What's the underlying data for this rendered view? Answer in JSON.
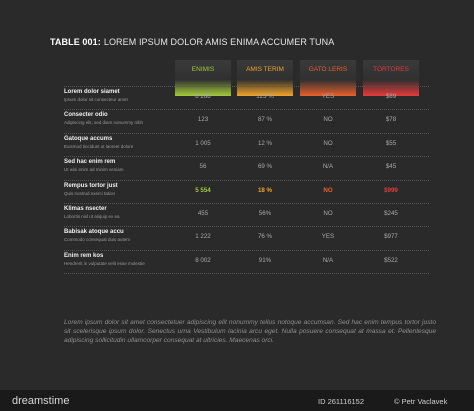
{
  "header": {
    "prefix": "TABLE 001:",
    "title": "LOREM IPSUM DOLOR AMIS ENIMA ACCUMER TUNA"
  },
  "table": {
    "columns": [
      {
        "label": "ENIMIS",
        "color": "#a3c93a"
      },
      {
        "label": "AMIS TERIM",
        "color": "#f0a32a"
      },
      {
        "label": "GATO LERIS",
        "color": "#e8602c"
      },
      {
        "label": "TORTORES",
        "color": "#e23b3b"
      }
    ],
    "rows": [
      {
        "label": "Lorem dolor siamet",
        "sublabel": "Ipsum dolor sit consecteur amet",
        "cells": [
          "8 288",
          "123 %",
          "YES",
          "$89"
        ]
      },
      {
        "label": "Consecter odio",
        "sublabel": "Adipiscing elit, sed diam nonummy nibh",
        "cells": [
          "123",
          "87 %",
          "NO",
          "$78"
        ]
      },
      {
        "label": "Gatoque accums",
        "sublabel": "Euismod tincidunt ut laoreet dolore",
        "cells": [
          "1 005",
          "12 %",
          "NO",
          "$55"
        ]
      },
      {
        "label": "Sed hac enim rem",
        "sublabel": "Ut wisi enim ad minim veniam",
        "cells": [
          "56",
          "69 %",
          "N/A",
          "$45"
        ]
      },
      {
        "label": "Rempus tortor just",
        "sublabel": "Quis nostrud exerci tation",
        "cells": [
          "5 554",
          "18 %",
          "NO",
          "$999"
        ],
        "highlight": true
      },
      {
        "label": "Klimas nsecter",
        "sublabel": "Lobortis nisl ut aliquip ex ea",
        "cells": [
          "455",
          "56%",
          "NO",
          "$245"
        ]
      },
      {
        "label": "Babisak atoque accu",
        "sublabel": "Commodo consequat duis autem",
        "cells": [
          "1 222",
          "76 %",
          "YES",
          "$977"
        ]
      },
      {
        "label": "Enim rem kos",
        "sublabel": "Hendrerit in vulputate velit esse molestie",
        "cells": [
          "8 002",
          "91%",
          "N/A",
          "$522"
        ]
      }
    ]
  },
  "footnote": "Lorem ipsum dolor sit amet consectetuer adipiscing elit nonummy tellus notoque accumsan. Sed hac enim tempus tortor justo sit scelerisque ipsum dolor. Senectus urna Vestibulum lacinia arcu eget. Nulla posuere consequat at massa et. Pellentesque adipiscing sollicitudin ullamcorper consequat at ultricies. Maecenas orci.",
  "footer": {
    "brand": "dreamstime",
    "id": "ID 261116152",
    "author": "© Petr Vaclavek"
  }
}
